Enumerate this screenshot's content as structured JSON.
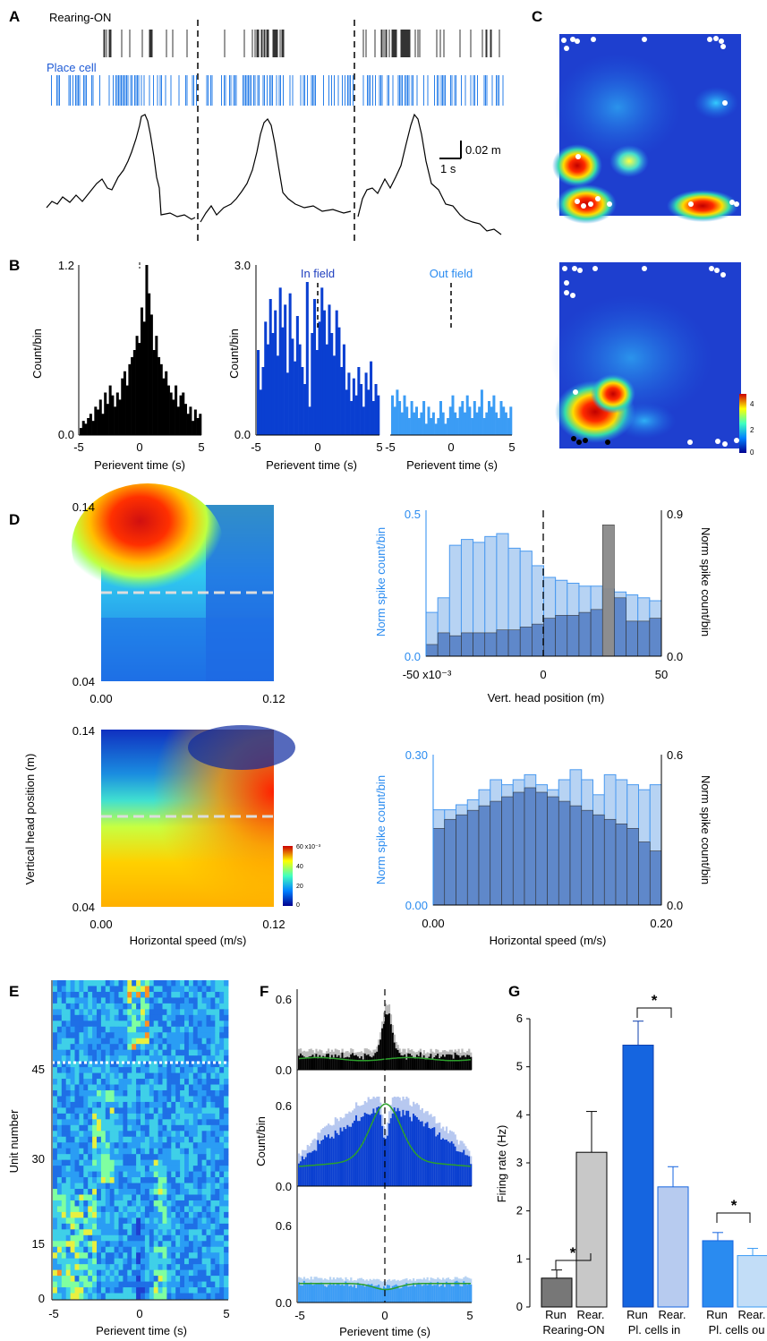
{
  "colors": {
    "dark_blue": "#0a3fd1",
    "med_blue": "#1565e0",
    "light_blue": "#3b9cf5",
    "pale_blue": "#b7d3f3",
    "gray": "#8a8a8a",
    "black": "#000000",
    "green": "#2ca02c"
  },
  "panels": {
    "A": "A",
    "B": "B",
    "C": "C",
    "D": "D",
    "E": "E",
    "F": "F",
    "G": "G"
  },
  "panelA": {
    "rearing_label": "Rearing-ON",
    "place_label": "Place cell",
    "scale_m": "0.02 m",
    "scale_s": "1 s"
  },
  "panelC": {
    "colorbar_ticks": [
      "4",
      "2",
      "0"
    ]
  },
  "chart_data": [
    {
      "id": "B1",
      "type": "bar",
      "ylabel": "Count/bin",
      "xlabel": "Perievent time (s)",
      "ylim": [
        0.0,
        1.2
      ],
      "yticks": [
        "1.2",
        "0.0"
      ],
      "xticks": [
        "-5",
        "0",
        "5"
      ],
      "color": "#000000",
      "values": [
        0.05,
        0.1,
        0.08,
        0.12,
        0.15,
        0.1,
        0.2,
        0.18,
        0.25,
        0.15,
        0.3,
        0.22,
        0.35,
        0.28,
        0.2,
        0.3,
        0.25,
        0.4,
        0.45,
        0.35,
        0.5,
        0.55,
        0.6,
        0.7,
        0.65,
        0.9,
        0.8,
        1.2,
        1.0,
        0.85,
        0.6,
        0.7,
        0.55,
        0.5,
        0.4,
        0.45,
        0.35,
        0.3,
        0.25,
        0.35,
        0.2,
        0.28,
        0.3,
        0.22,
        0.15,
        0.2,
        0.1,
        0.18,
        0.12,
        0.15
      ]
    },
    {
      "id": "B2",
      "type": "bar",
      "ylabel": "Count/bin",
      "xlabel": "Perievent time (s)",
      "ylim": [
        0.0,
        3.0
      ],
      "yticks": [
        "3.0",
        "0.0"
      ],
      "xticks": [
        "-5",
        "0",
        "5"
      ],
      "annotation": "In field",
      "color": "#0a3fd1",
      "values": [
        1.5,
        0.8,
        1.2,
        2.0,
        1.6,
        2.4,
        1.8,
        2.2,
        1.4,
        2.6,
        1.9,
        2.3,
        1.1,
        2.5,
        1.7,
        1.3,
        2.1,
        1.6,
        1.2,
        0.9,
        2.7,
        0.5,
        1.8,
        2.4,
        1.5,
        2.0,
        2.6,
        2.2,
        1.6,
        2.3,
        1.8,
        1.4,
        2.2,
        1.9,
        1.2,
        1.6,
        0.8,
        1.1,
        0.6,
        1.0,
        0.7,
        1.2,
        0.9,
        0.5,
        1.1,
        0.8,
        1.3,
        0.6,
        0.9,
        0.7
      ]
    },
    {
      "id": "B3",
      "type": "bar",
      "xlabel": "Perievent time (s)",
      "ylim": [
        0.0,
        3.0
      ],
      "xticks": [
        "-5",
        "0",
        "5"
      ],
      "annotation": "Out field",
      "color": "#3b9cf5",
      "values": [
        0.7,
        0.5,
        0.8,
        0.6,
        0.4,
        0.7,
        0.5,
        0.3,
        0.6,
        0.4,
        0.5,
        0.3,
        0.4,
        0.6,
        0.2,
        0.5,
        0.3,
        0.4,
        0.2,
        0.3,
        0.6,
        0.4,
        0.2,
        0.3,
        0.5,
        0.7,
        0.4,
        0.3,
        0.5,
        0.6,
        0.4,
        0.7,
        0.5,
        0.3,
        0.6,
        0.4,
        0.5,
        0.8,
        0.3,
        0.4,
        0.6,
        0.5,
        0.7,
        0.4,
        0.3,
        0.6,
        0.5,
        0.4,
        0.3,
        0.5
      ]
    },
    {
      "id": "D1",
      "type": "heatmap",
      "xticks": [
        "0.00",
        "0.12"
      ],
      "yticks": [
        "0.14",
        "0.04"
      ]
    },
    {
      "id": "D2",
      "type": "bar",
      "ylabel": "Norm spike count/bin",
      "y2label": "Norm spike count/bin",
      "xlabel": "Vert. head position (m)",
      "ylim": [
        0.0,
        0.5
      ],
      "y2lim": [
        0.0,
        0.9
      ],
      "yticks": [
        "0.5",
        "0.0"
      ],
      "y2ticks": [
        "0.9",
        "0.0"
      ],
      "xticks": [
        "-50 x10⁻³",
        "0",
        "50"
      ],
      "series": [
        {
          "values": [
            0.15,
            0.2,
            0.38,
            0.4,
            0.39,
            0.41,
            0.42,
            0.37,
            0.36,
            0.31,
            0.27,
            0.26,
            0.25,
            0.24,
            0.24,
            0.23,
            0.22,
            0.21,
            0.2,
            0.19
          ]
        },
        {
          "values": [
            0.04,
            0.08,
            0.07,
            0.08,
            0.08,
            0.08,
            0.09,
            0.09,
            0.1,
            0.11,
            0.13,
            0.14,
            0.14,
            0.15,
            0.16,
            0.45,
            0.2,
            0.12,
            0.12,
            0.13
          ]
        }
      ]
    },
    {
      "id": "D3",
      "type": "heatmap",
      "ylabel": "Vertical head position (m)",
      "xlabel": "Horizontal speed (m/s)",
      "xticks": [
        "0.00",
        "0.12"
      ],
      "yticks": [
        "0.14",
        "0.04"
      ],
      "colorbar_ticks": [
        "60 x10⁻³",
        "40",
        "20",
        "0"
      ]
    },
    {
      "id": "D4",
      "type": "bar",
      "ylabel": "Norm spike count/bin",
      "y2label": "Norm spike count/bin",
      "xlabel": "Horizontal speed (m/s)",
      "ylim": [
        0.0,
        0.3
      ],
      "y2lim": [
        0.0,
        0.6
      ],
      "yticks": [
        "0.30",
        "0.00"
      ],
      "y2ticks": [
        "0.6",
        "0.0"
      ],
      "xticks": [
        "0.00",
        "0.20"
      ],
      "series": [
        {
          "values": [
            0.19,
            0.19,
            0.2,
            0.21,
            0.23,
            0.25,
            0.24,
            0.25,
            0.26,
            0.24,
            0.23,
            0.25,
            0.27,
            0.25,
            0.22,
            0.26,
            0.25,
            0.24,
            0.23,
            0.24
          ]
        },
        {
          "values": [
            0.17,
            0.19,
            0.2,
            0.21,
            0.22,
            0.23,
            0.24,
            0.25,
            0.26,
            0.25,
            0.24,
            0.23,
            0.22,
            0.21,
            0.2,
            0.19,
            0.18,
            0.17,
            0.14,
            0.12
          ]
        }
      ]
    },
    {
      "id": "E",
      "type": "heatmap",
      "ylabel": "Unit number",
      "xlabel": "Perievent time (s)",
      "xticks": [
        "-5",
        "0",
        "5"
      ],
      "yticks": [
        "45",
        "30",
        "15",
        "0"
      ]
    },
    {
      "id": "F",
      "type": "bar",
      "ylabel": "Count/bin",
      "xlabel": "Perievent time (s)",
      "xticks": [
        "-5",
        "0",
        "5"
      ],
      "yticks_top": [
        "0.6",
        "0.0"
      ],
      "yticks_mid": [
        "0.6",
        "0.0"
      ],
      "yticks_bot": [
        "0.6",
        "0.0"
      ]
    },
    {
      "id": "G",
      "type": "bar",
      "ylabel": "Firing rate (Hz)",
      "ylim": [
        0,
        6
      ],
      "yticks": [
        "6",
        "5",
        "4",
        "3",
        "2",
        "1",
        "0"
      ],
      "bar_labels": [
        "Run",
        "Rear.",
        "Run",
        "Rear.",
        "Run",
        "Rear."
      ],
      "group_labels": [
        "Rearing-ON",
        "Pl. cells in",
        "Pl. cells ou"
      ],
      "values": [
        0.6,
        3.22,
        5.45,
        2.5,
        1.38,
        1.07
      ],
      "errors": [
        0.17,
        0.85,
        0.5,
        0.42,
        0.17,
        0.15
      ],
      "sig": "*"
    }
  ]
}
